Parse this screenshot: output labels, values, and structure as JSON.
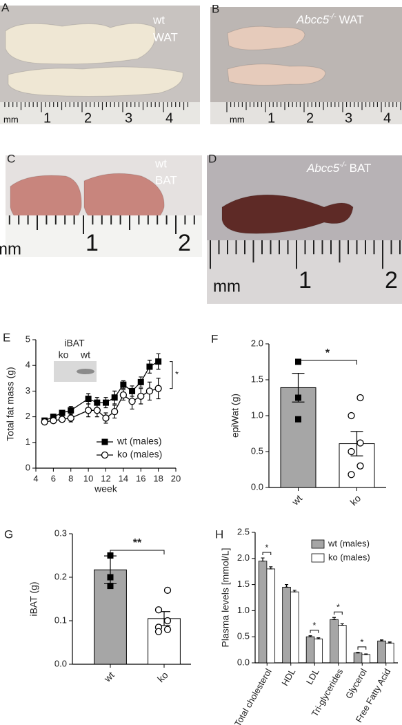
{
  "panels": [
    {
      "letter": "A",
      "labels": [
        "wt",
        "WAT"
      ],
      "ruler": [
        "mm",
        "1",
        "2",
        "3",
        "4"
      ]
    },
    {
      "letter": "B",
      "label": {
        "gene": "Abcc5",
        "sup": "-/-",
        "tissue": "WAT"
      },
      "ruler": [
        "mm",
        "1",
        "2",
        "3",
        "4"
      ]
    },
    {
      "letter": "C",
      "labels": [
        "wt",
        "BAT"
      ],
      "ruler": [
        "mm",
        "1",
        "2"
      ]
    },
    {
      "letter": "D",
      "label": {
        "gene": "Abcc5",
        "sup": "-/-",
        "tissue": "BAT"
      },
      "ruler": [
        "mm",
        "1",
        "2"
      ]
    }
  ],
  "chart_data": [
    {
      "type": "line",
      "letter": "E",
      "xlabel": "week",
      "ylabel": "Total fat mass (g)",
      "inset": {
        "title": "iBAT",
        "lanes": [
          "ko",
          "wt"
        ]
      },
      "x": [
        5,
        6,
        7,
        8,
        10,
        11,
        12,
        13,
        14,
        15,
        16,
        17,
        18
      ],
      "series": [
        {
          "name": "wt (males)",
          "color": "#000000",
          "marker": "square",
          "values": [
            1.85,
            2.0,
            2.15,
            2.25,
            2.7,
            2.55,
            2.55,
            2.75,
            3.25,
            3.0,
            3.35,
            3.95,
            4.15
          ],
          "errors": [
            0.1,
            0.1,
            0.1,
            0.15,
            0.2,
            0.2,
            0.2,
            0.25,
            0.15,
            0.2,
            0.2,
            0.25,
            0.3
          ]
        },
        {
          "name": "ko (males)",
          "color": "#000000",
          "marker": "circle",
          "values": [
            1.8,
            1.85,
            1.9,
            1.95,
            2.25,
            2.25,
            1.95,
            2.2,
            2.85,
            2.6,
            2.8,
            3.0,
            3.1
          ],
          "errors": [
            0.1,
            0.1,
            0.1,
            0.15,
            0.25,
            0.25,
            0.2,
            0.25,
            0.2,
            0.3,
            0.3,
            0.35,
            0.4
          ]
        }
      ],
      "significance": {
        "label": "*"
      },
      "xlim": [
        4,
        20
      ],
      "xticks": [
        4,
        6,
        8,
        10,
        12,
        14,
        16,
        18,
        20
      ],
      "ylim": [
        0,
        5
      ],
      "yticks": [
        0,
        1,
        2,
        3,
        4,
        5
      ]
    },
    {
      "type": "bar",
      "letter": "F",
      "ylabel": "epiWat (g)",
      "categories": [
        "wt",
        "ko"
      ],
      "values": [
        1.39,
        0.61
      ],
      "errors": [
        0.2,
        0.17
      ],
      "colors": [
        "#a6a6a6",
        "#ffffff"
      ],
      "markers": [
        "square",
        "circle"
      ],
      "points": [
        [
          1.75,
          1.25,
          0.95
        ],
        [
          1.25,
          1.0,
          0.62,
          0.5,
          0.3,
          0.18
        ]
      ],
      "significance": {
        "label": "*"
      },
      "ylim": [
        0,
        2
      ],
      "yticks": [
        {
          "value": 0,
          "label": "0.0"
        },
        {
          "value": 0.5,
          "label": "0.5"
        },
        {
          "value": 1,
          "label": "1.0"
        },
        {
          "value": 1.5,
          "label": "1.5"
        },
        {
          "value": 2,
          "label": "2.0"
        }
      ]
    },
    {
      "type": "bar",
      "letter": "G",
      "ylabel": "iBAT (g)",
      "categories": [
        "wt",
        "ko"
      ],
      "values": [
        0.217,
        0.105
      ],
      "errors": [
        0.032,
        0.016
      ],
      "colors": [
        "#a6a6a6",
        "#ffffff"
      ],
      "markers": [
        "square",
        "circle"
      ],
      "points": [
        [
          0.25,
          0.2,
          0.18
        ],
        [
          0.17,
          0.125,
          0.1,
          0.085,
          0.08,
          0.075
        ]
      ],
      "significance": {
        "label": "**"
      },
      "ylim": [
        0,
        0.3
      ],
      "yticks": [
        {
          "value": 0,
          "label": "0.0"
        },
        {
          "value": 0.1,
          "label": "0.1"
        },
        {
          "value": 0.2,
          "label": "0.2"
        },
        {
          "value": 0.3,
          "label": "0.3"
        }
      ]
    },
    {
      "type": "bar",
      "letter": "H",
      "ylabel": "Plasma levels [mmol/L]",
      "categories": [
        "Total cholesterol",
        "HDL",
        "LDL",
        "Tri-glycerides",
        "Glycerol",
        "Free Fatty Acid"
      ],
      "series": [
        {
          "name": "wt (males)",
          "color": "#a6a6a6",
          "values": [
            1.95,
            1.45,
            0.5,
            0.83,
            0.19,
            0.42
          ],
          "errors": [
            0.06,
            0.05,
            0.02,
            0.04,
            0.01,
            0.02
          ]
        },
        {
          "name": "ko (males)",
          "color": "#ffffff",
          "values": [
            1.8,
            1.36,
            0.46,
            0.72,
            0.16,
            0.38
          ],
          "errors": [
            0.04,
            0.03,
            0.02,
            0.03,
            0.01,
            0.02
          ]
        }
      ],
      "significance": [
        {
          "label": "*",
          "category": "Total cholesterol"
        },
        {
          "label": "*",
          "category": "LDL"
        },
        {
          "label": "*",
          "category": "Tri-glycerides"
        },
        {
          "label": "*",
          "category": "Glycerol"
        }
      ],
      "ylim": [
        0,
        2.5
      ],
      "yticks": [
        {
          "value": 0,
          "label": "0.0"
        },
        {
          "value": 0.5,
          "label": "0.5"
        },
        {
          "value": 1,
          "label": "1.0"
        },
        {
          "value": 1.5,
          "label": "1.5"
        },
        {
          "value": 2,
          "label": "2.0"
        },
        {
          "value": 2.5,
          "label": "2.5"
        }
      ]
    }
  ]
}
